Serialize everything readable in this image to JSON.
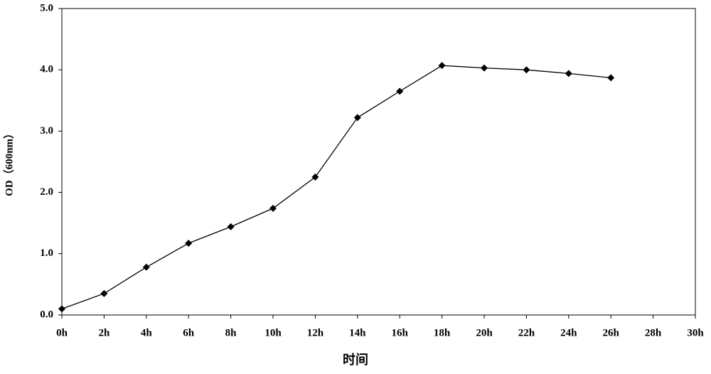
{
  "chart_data": {
    "type": "line",
    "x_label": "时间",
    "y_label": "OD（600nm）",
    "x": [
      0,
      2,
      4,
      6,
      8,
      10,
      12,
      14,
      16,
      18,
      20,
      22,
      24,
      26
    ],
    "values": [
      0.1,
      0.35,
      0.78,
      1.17,
      1.44,
      1.74,
      2.25,
      3.22,
      3.65,
      4.07,
      4.03,
      4.0,
      3.94,
      3.87
    ],
    "color": "#000000",
    "xlim": [
      0,
      30
    ],
    "xticks": [
      {
        "value": 0,
        "label": "0h"
      },
      {
        "value": 2,
        "label": "2h"
      },
      {
        "value": 4,
        "label": "4h"
      },
      {
        "value": 6,
        "label": "6h"
      },
      {
        "value": 8,
        "label": "8h"
      },
      {
        "value": 10,
        "label": "10h"
      },
      {
        "value": 12,
        "label": "12h"
      },
      {
        "value": 14,
        "label": "14h"
      },
      {
        "value": 16,
        "label": "16h"
      },
      {
        "value": 18,
        "label": "18h"
      },
      {
        "value": 20,
        "label": "20h"
      },
      {
        "value": 22,
        "label": "22h"
      },
      {
        "value": 24,
        "label": "24h"
      },
      {
        "value": 26,
        "label": "26h"
      },
      {
        "value": 28,
        "label": "28h"
      },
      {
        "value": 30,
        "label": "30h"
      }
    ],
    "ylim": [
      0,
      5
    ],
    "yticks": [
      {
        "value": 0,
        "label": "0.0"
      },
      {
        "value": 1,
        "label": "1.0"
      },
      {
        "value": 2,
        "label": "2.0"
      },
      {
        "value": 3,
        "label": "3.0"
      },
      {
        "value": 4,
        "label": "4.0"
      },
      {
        "value": 5,
        "label": "5.0"
      }
    ],
    "grid": false
  }
}
